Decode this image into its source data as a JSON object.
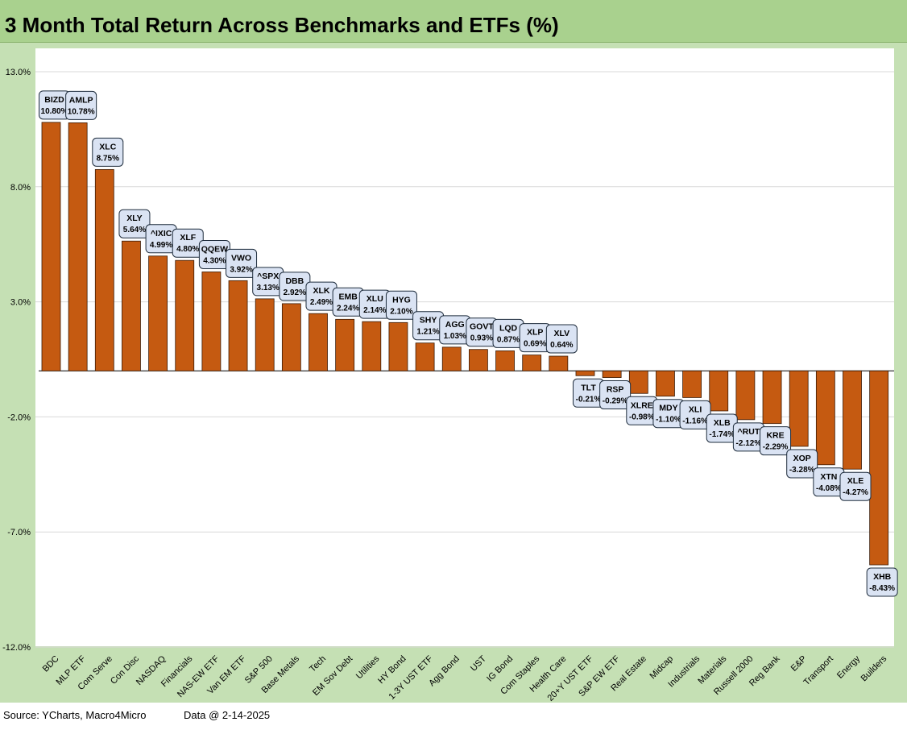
{
  "title": "3 Month Total Return Across Benchmarks and ETFs (%)",
  "footer": {
    "source": "Source: YCharts, Macro4Micro",
    "data_date": "Data @ 2-14-2025"
  },
  "colors": {
    "bar": "#c55a11",
    "bar_outline": "#3a1a05",
    "frame": "#c5e0b4",
    "title_bar": "#a9d18e",
    "label_fill": "#dae3f3",
    "label_border": "#1f2d3d",
    "gridline": "#d9d9d9"
  },
  "chart_data": {
    "type": "bar",
    "title": "3 Month Total Return Across Benchmarks and ETFs (%)",
    "xlabel": "",
    "ylabel": "",
    "ylim": [
      -12,
      13
    ],
    "yticks": [
      13,
      8,
      3,
      -2,
      -7,
      -12
    ],
    "ytick_labels": [
      "13.0%",
      "8.0%",
      "3.0%",
      "-2.0%",
      "-7.0%",
      "-12.0%"
    ],
    "grid": true,
    "categories": [
      "BDC",
      "MLP ETF",
      "Com Serve",
      "Con Disc",
      "NASDAQ",
      "Financials",
      "NAS-EW ETF",
      "Van EM ETF",
      "S&P 500",
      "Base Metals",
      "Tech",
      "EM Sov Debt",
      "Utilities",
      "HY Bond",
      "1-3Y UST ETF",
      "Agg Bond",
      "UST",
      "IG Bond",
      "Com Staples",
      "Health Care",
      "20+Y UST ETF",
      "S&P EW ETF",
      "Real Estate",
      "Midcap",
      "Industrials",
      "Materials",
      "Russell 2000",
      "Reg Bank",
      "E&P",
      "Transport",
      "Energy",
      "Builders"
    ],
    "tickers": [
      "BIZD",
      "AMLP",
      "XLC",
      "XLY",
      "^IXIC",
      "XLF",
      "QQEW",
      "VWO",
      "^SPX",
      "DBB",
      "XLK",
      "EMB",
      "XLU",
      "HYG",
      "SHY",
      "AGG",
      "GOVT",
      "LQD",
      "XLP",
      "XLV",
      "TLT",
      "RSP",
      "XLRE",
      "MDY",
      "XLI",
      "XLB",
      "^RUT",
      "KRE",
      "XOP",
      "XTN",
      "XLE",
      "XHB"
    ],
    "values": [
      10.8,
      10.78,
      8.75,
      5.64,
      4.99,
      4.8,
      4.3,
      3.92,
      3.13,
      2.92,
      2.49,
      2.24,
      2.14,
      2.1,
      1.21,
      1.03,
      0.93,
      0.87,
      0.69,
      0.64,
      -0.21,
      -0.29,
      -0.98,
      -1.1,
      -1.16,
      -1.74,
      -2.12,
      -2.29,
      -3.28,
      -4.08,
      -4.27,
      -8.43
    ],
    "value_labels": [
      "10.80%",
      "10.78%",
      "8.75%",
      "5.64%",
      "4.99%",
      "4.80%",
      "4.30%",
      "3.92%",
      "3.13%",
      "2.92%",
      "2.49%",
      "2.24%",
      "2.14%",
      "2.10%",
      "1.21%",
      "1.03%",
      "0.93%",
      "0.87%",
      "0.69%",
      "0.64%",
      "-0.21%",
      "-0.29%",
      "-0.98%",
      "-1.10%",
      "-1.16%",
      "-1.74%",
      "-2.12%",
      "-2.29%",
      "-3.28%",
      "-4.08%",
      "-4.27%",
      "-8.43%"
    ]
  }
}
